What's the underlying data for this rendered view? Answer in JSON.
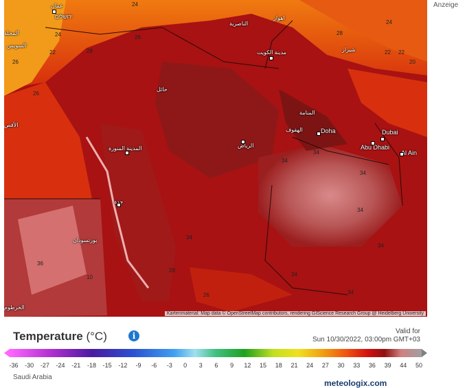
{
  "ad_label": "Anzeige",
  "attribution": "Kartenmaterial: Map data © OpenStreetMap contributors, rendering GIScience Research Group @ Heidelberg University",
  "title": "Temperature",
  "unit": "(°C)",
  "valid_label": "Valid for",
  "valid_time": "Sun 10/30/2022, 03:00pm GMT+03",
  "location": "Saudi Arabia",
  "logo": "meteologix.com",
  "scale_ticks": [
    "-36",
    "-30",
    "-27",
    "-24",
    "-21",
    "-18",
    "-15",
    "-12",
    "-9",
    "-6",
    "-3",
    "0",
    "3",
    "6",
    "9",
    "12",
    "15",
    "18",
    "21",
    "24",
    "27",
    "30",
    "33",
    "36",
    "39",
    "44",
    "50"
  ],
  "cities": {
    "amman": "عمان",
    "jerusalem": "ירושלים",
    "mahalla": "المحلة",
    "suez": "السويس",
    "luxor": "الأقص",
    "nasiriyah": "الناصرية",
    "ahvaz": "اهواز",
    "kuwait": "مدينة الكويت",
    "shiraz": "شیراز",
    "hail": "حائل",
    "manama": "المنامة",
    "hofuf": "الهفوف",
    "doha": "Doha",
    "dubai": "Dubai",
    "abudhabi": "Abu Dhabi",
    "alain": "Al Ain",
    "riyadh": "الرياض",
    "medina": "المدينة المنورة",
    "jeddah": "جدة",
    "portsudan": "بورتسودان",
    "khartoum": "الخرطوم"
  },
  "isotherms": [
    "24",
    "24",
    "26",
    "28",
    "24",
    "28",
    "22",
    "26",
    "22",
    "22",
    "20",
    "26",
    "34",
    "34",
    "34",
    "34",
    "34",
    "36",
    "10",
    "34",
    "34",
    "26",
    "34",
    "28"
  ],
  "colors": {
    "accent": "#1e78d0",
    "map_base": "#b01010"
  }
}
